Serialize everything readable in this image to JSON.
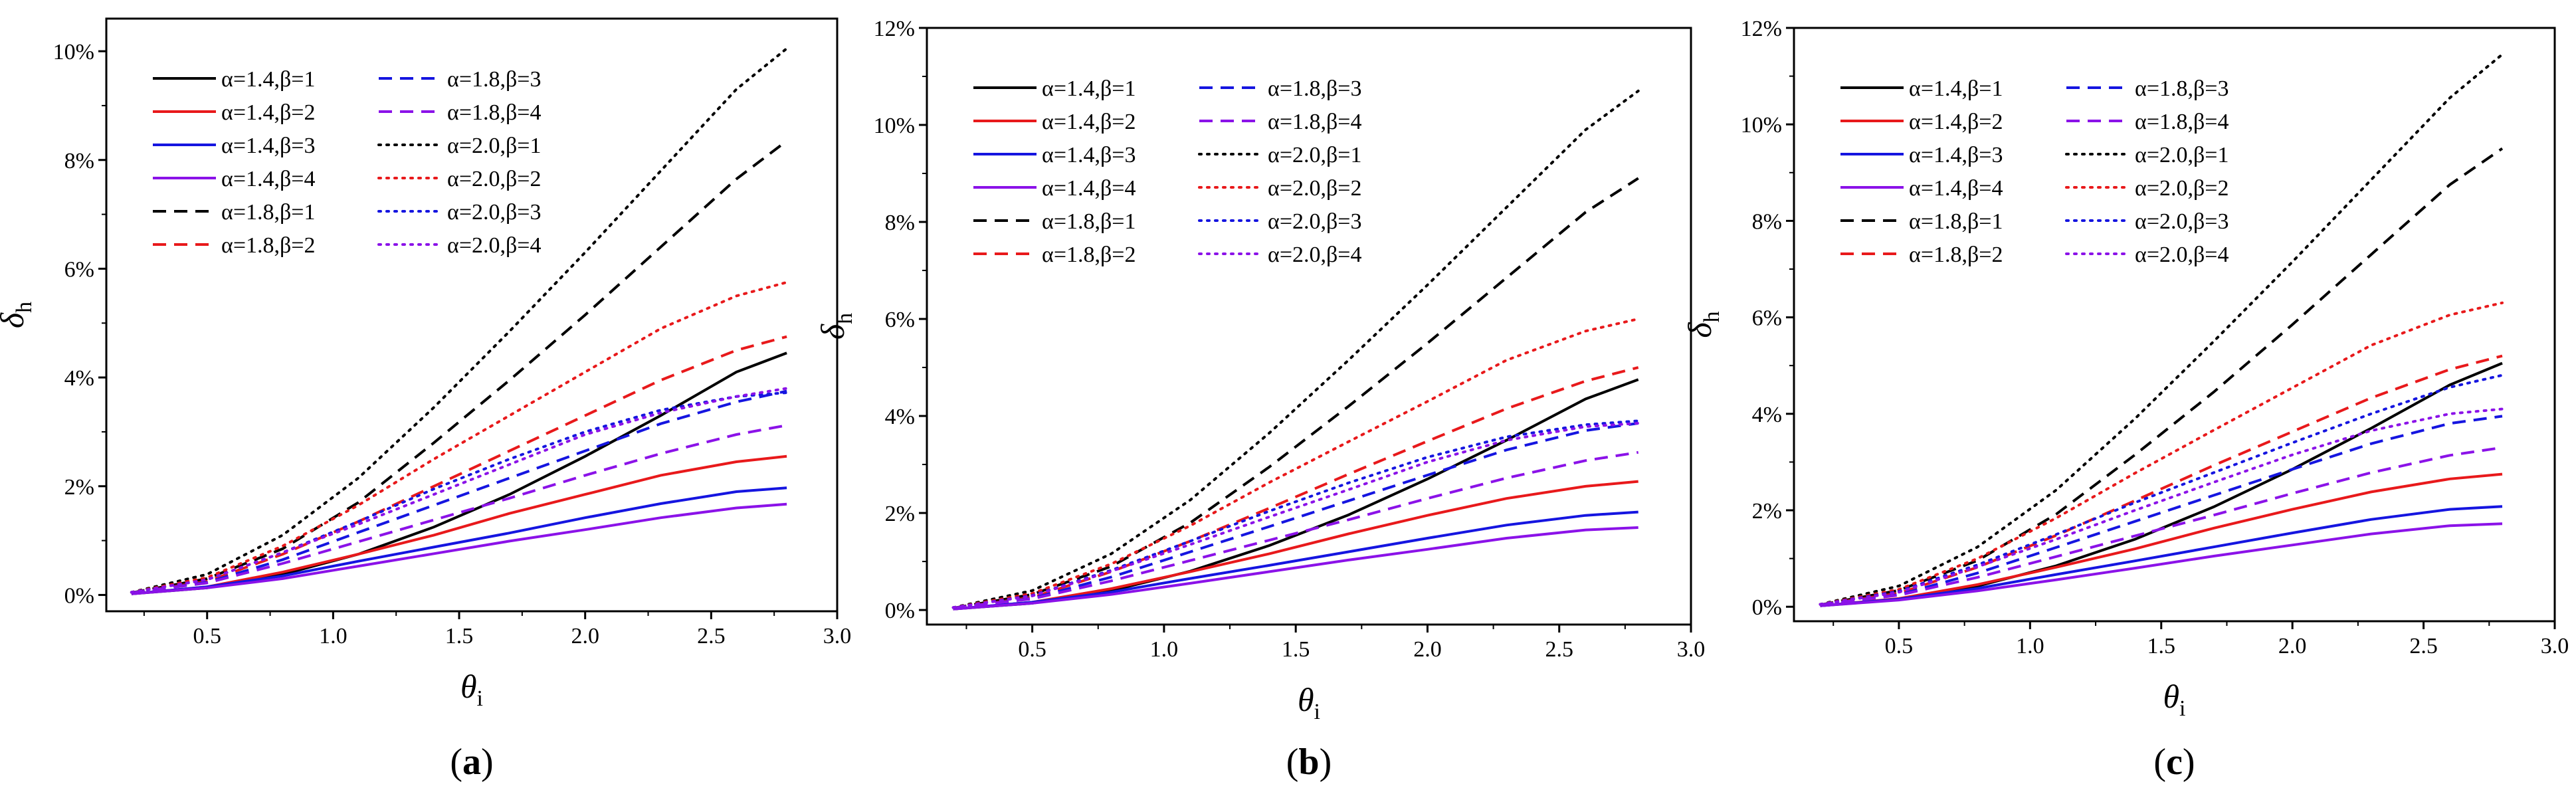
{
  "figure": {
    "panels": [
      "a",
      "b",
      "c"
    ]
  },
  "chart_data": [
    {
      "panel_label": "(a)",
      "panel_letter": "a",
      "type": "line",
      "xlabel": "θ",
      "xlabel_sub": "i",
      "ylabel": "δ",
      "ylabel_sub": "h",
      "xlim": [
        0.1,
        3.0
      ],
      "ylim": [
        -0.3,
        10.6
      ],
      "xticks": [
        0.5,
        1.0,
        1.5,
        2.0,
        2.5,
        3.0
      ],
      "xtick_labels": [
        "0.5",
        "1.0",
        "1.5",
        "2.0",
        "2.5",
        "3.0"
      ],
      "yticks": [
        0,
        2,
        4,
        6,
        8,
        10
      ],
      "ytick_labels": [
        "0%",
        "2%",
        "4%",
        "6%",
        "8%",
        "10%"
      ],
      "legend_position": "top-left",
      "x": [
        0.2,
        0.5,
        0.8,
        1.1,
        1.4,
        1.7,
        2.0,
        2.3,
        2.6,
        2.8
      ],
      "series": [
        {
          "name": "α=1.4,β=1",
          "color": "#000000",
          "dash": "solid",
          "values": [
            0.02,
            0.13,
            0.38,
            0.75,
            1.25,
            1.85,
            2.55,
            3.3,
            4.1,
            4.45
          ]
        },
        {
          "name": "α=1.4,β=2",
          "color": "#e8191b",
          "dash": "solid",
          "values": [
            0.02,
            0.15,
            0.42,
            0.75,
            1.1,
            1.5,
            1.85,
            2.2,
            2.45,
            2.55
          ]
        },
        {
          "name": "α=1.4,β=3",
          "color": "#1515e0",
          "dash": "solid",
          "values": [
            0.02,
            0.15,
            0.35,
            0.62,
            0.88,
            1.14,
            1.42,
            1.68,
            1.9,
            1.97
          ]
        },
        {
          "name": "α=1.4,β=4",
          "color": "#8b12e8",
          "dash": "solid",
          "values": [
            0.02,
            0.13,
            0.3,
            0.53,
            0.76,
            0.99,
            1.2,
            1.42,
            1.6,
            1.67
          ]
        },
        {
          "name": "α=1.8,β=1",
          "color": "#000000",
          "dash": "dashed",
          "values": [
            0.04,
            0.3,
            0.85,
            1.7,
            2.8,
            3.95,
            5.15,
            6.4,
            7.65,
            8.35
          ]
        },
        {
          "name": "α=1.8,β=2",
          "color": "#e8191b",
          "dash": "dashed",
          "values": [
            0.04,
            0.25,
            0.75,
            1.35,
            2.0,
            2.65,
            3.3,
            3.95,
            4.5,
            4.75
          ]
        },
        {
          "name": "α=1.8,β=3",
          "color": "#1515e0",
          "dash": "dashed",
          "values": [
            0.04,
            0.23,
            0.65,
            1.15,
            1.65,
            2.15,
            2.65,
            3.15,
            3.55,
            3.75
          ]
        },
        {
          "name": "α=1.8,β=4",
          "color": "#8b12e8",
          "dash": "dashed",
          "values": [
            0.04,
            0.22,
            0.58,
            0.98,
            1.38,
            1.78,
            2.2,
            2.6,
            2.95,
            3.12
          ]
        },
        {
          "name": "α=2.0,β=1",
          "color": "#000000",
          "dash": "dotted",
          "values": [
            0.05,
            0.38,
            1.1,
            2.15,
            3.45,
            4.85,
            6.3,
            7.8,
            9.3,
            10.05
          ]
        },
        {
          "name": "α=2.0,β=2",
          "color": "#e8191b",
          "dash": "dotted",
          "values": [
            0.05,
            0.32,
            0.9,
            1.65,
            2.5,
            3.3,
            4.1,
            4.9,
            5.5,
            5.75
          ]
        },
        {
          "name": "α=2.0,β=3",
          "color": "#1515e0",
          "dash": "dotted",
          "values": [
            0.05,
            0.28,
            0.78,
            1.35,
            1.95,
            2.5,
            3.0,
            3.4,
            3.65,
            3.72
          ]
        },
        {
          "name": "α=2.0,β=4",
          "color": "#8b12e8",
          "dash": "dotted",
          "values": [
            0.05,
            0.28,
            0.78,
            1.3,
            1.85,
            2.4,
            2.95,
            3.35,
            3.65,
            3.8
          ]
        }
      ]
    },
    {
      "panel_label": "(b)",
      "panel_letter": "b",
      "type": "line",
      "xlabel": "θ",
      "xlabel_sub": "i",
      "ylabel": "δ",
      "ylabel_sub": "h",
      "xlim": [
        0.1,
        3.0
      ],
      "ylim": [
        -0.3,
        12.0
      ],
      "xticks": [
        0.5,
        1.0,
        1.5,
        2.0,
        2.5,
        3.0
      ],
      "xtick_labels": [
        "0.5",
        "1.0",
        "1.5",
        "2.0",
        "2.5",
        "3.0"
      ],
      "yticks": [
        0,
        2,
        4,
        6,
        8,
        10,
        12
      ],
      "ytick_labels": [
        "0%",
        "2%",
        "4%",
        "6%",
        "8%",
        "10%",
        "12%"
      ],
      "legend_position": "top-left",
      "x": [
        0.2,
        0.5,
        0.8,
        1.1,
        1.4,
        1.7,
        2.0,
        2.3,
        2.6,
        2.8
      ],
      "series": [
        {
          "name": "α=1.4,β=1",
          "color": "#000000",
          "dash": "solid",
          "values": [
            0.02,
            0.14,
            0.4,
            0.8,
            1.33,
            1.96,
            2.7,
            3.5,
            4.35,
            4.75
          ]
        },
        {
          "name": "α=1.4,β=2",
          "color": "#e8191b",
          "dash": "solid",
          "values": [
            0.02,
            0.16,
            0.44,
            0.79,
            1.16,
            1.57,
            1.95,
            2.3,
            2.55,
            2.65
          ]
        },
        {
          "name": "α=1.4,β=3",
          "color": "#1515e0",
          "dash": "solid",
          "values": [
            0.02,
            0.16,
            0.37,
            0.65,
            0.92,
            1.2,
            1.48,
            1.75,
            1.95,
            2.02
          ]
        },
        {
          "name": "α=1.4,β=4",
          "color": "#8b12e8",
          "dash": "solid",
          "values": [
            0.02,
            0.14,
            0.32,
            0.55,
            0.79,
            1.03,
            1.25,
            1.48,
            1.65,
            1.7
          ]
        },
        {
          "name": "α=1.8,β=1",
          "color": "#000000",
          "dash": "dashed",
          "values": [
            0.04,
            0.32,
            0.9,
            1.8,
            2.95,
            4.2,
            5.5,
            6.85,
            8.2,
            8.9
          ]
        },
        {
          "name": "α=1.8,β=2",
          "color": "#e8191b",
          "dash": "dashed",
          "values": [
            0.04,
            0.26,
            0.79,
            1.42,
            2.1,
            2.8,
            3.48,
            4.15,
            4.72,
            5.0
          ]
        },
        {
          "name": "α=1.8,β=3",
          "color": "#1515e0",
          "dash": "dashed",
          "values": [
            0.04,
            0.24,
            0.68,
            1.2,
            1.72,
            2.25,
            2.78,
            3.3,
            3.7,
            3.85
          ]
        },
        {
          "name": "α=1.8,β=4",
          "color": "#8b12e8",
          "dash": "dashed",
          "values": [
            0.04,
            0.23,
            0.6,
            1.02,
            1.44,
            1.86,
            2.3,
            2.72,
            3.08,
            3.25
          ]
        },
        {
          "name": "α=2.0,β=1",
          "color": "#000000",
          "dash": "dotted",
          "values": [
            0.05,
            0.4,
            1.16,
            2.27,
            3.65,
            5.15,
            6.7,
            8.3,
            9.9,
            10.7
          ]
        },
        {
          "name": "α=2.0,β=2",
          "color": "#e8191b",
          "dash": "dotted",
          "values": [
            0.05,
            0.34,
            0.95,
            1.74,
            2.63,
            3.47,
            4.3,
            5.15,
            5.75,
            6.0
          ]
        },
        {
          "name": "α=2.0,β=3",
          "color": "#1515e0",
          "dash": "dotted",
          "values": [
            0.05,
            0.3,
            0.82,
            1.42,
            2.04,
            2.62,
            3.15,
            3.57,
            3.82,
            3.9
          ]
        },
        {
          "name": "α=2.0,β=4",
          "color": "#8b12e8",
          "dash": "dotted",
          "values": [
            0.05,
            0.29,
            0.8,
            1.35,
            1.92,
            2.48,
            3.05,
            3.5,
            3.78,
            3.85
          ]
        }
      ]
    },
    {
      "panel_label": "(c)",
      "panel_letter": "c",
      "type": "line",
      "xlabel": "θ",
      "xlabel_sub": "i",
      "ylabel": "δ",
      "ylabel_sub": "h",
      "xlim": [
        0.1,
        3.0
      ],
      "ylim": [
        -0.3,
        12.0
      ],
      "xticks": [
        0.5,
        1.0,
        1.5,
        2.0,
        2.5,
        3.0
      ],
      "xtick_labels": [
        "0.5",
        "1.0",
        "1.5",
        "2.0",
        "2.5",
        "3.0"
      ],
      "yticks": [
        0,
        2,
        4,
        6,
        8,
        10,
        12
      ],
      "ytick_labels": [
        "0%",
        "2%",
        "4%",
        "6%",
        "8%",
        "10%",
        "12%"
      ],
      "legend_position": "top-left",
      "x": [
        0.2,
        0.5,
        0.8,
        1.1,
        1.4,
        1.7,
        2.0,
        2.3,
        2.6,
        2.8
      ],
      "series": [
        {
          "name": "α=1.4,β=1",
          "color": "#000000",
          "dash": "solid",
          "values": [
            0.02,
            0.15,
            0.43,
            0.85,
            1.4,
            2.07,
            2.85,
            3.7,
            4.6,
            5.05
          ]
        },
        {
          "name": "α=1.4,β=2",
          "color": "#e8191b",
          "dash": "solid",
          "values": [
            0.02,
            0.17,
            0.46,
            0.82,
            1.2,
            1.63,
            2.02,
            2.38,
            2.65,
            2.75
          ]
        },
        {
          "name": "α=1.4,β=3",
          "color": "#1515e0",
          "dash": "solid",
          "values": [
            0.02,
            0.16,
            0.38,
            0.67,
            0.95,
            1.24,
            1.53,
            1.81,
            2.02,
            2.08
          ]
        },
        {
          "name": "α=1.4,β=4",
          "color": "#8b12e8",
          "dash": "solid",
          "values": [
            0.02,
            0.14,
            0.33,
            0.56,
            0.8,
            1.05,
            1.28,
            1.51,
            1.68,
            1.72
          ]
        },
        {
          "name": "α=1.8,β=1",
          "color": "#000000",
          "dash": "dashed",
          "values": [
            0.04,
            0.34,
            0.96,
            1.92,
            3.15,
            4.45,
            5.85,
            7.3,
            8.75,
            9.5
          ]
        },
        {
          "name": "α=1.8,β=2",
          "color": "#e8191b",
          "dash": "dashed",
          "values": [
            0.04,
            0.28,
            0.82,
            1.48,
            2.2,
            2.93,
            3.63,
            4.33,
            4.92,
            5.2
          ]
        },
        {
          "name": "α=1.8,β=3",
          "color": "#1515e0",
          "dash": "dashed",
          "values": [
            0.04,
            0.25,
            0.7,
            1.23,
            1.77,
            2.31,
            2.85,
            3.38,
            3.8,
            3.95
          ]
        },
        {
          "name": "α=1.8,β=4",
          "color": "#8b12e8",
          "dash": "dashed",
          "values": [
            0.04,
            0.24,
            0.61,
            1.04,
            1.47,
            1.9,
            2.35,
            2.78,
            3.14,
            3.3
          ]
        },
        {
          "name": "α=2.0,β=1",
          "color": "#000000",
          "dash": "dotted",
          "values": [
            0.05,
            0.43,
            1.24,
            2.42,
            3.9,
            5.5,
            7.15,
            8.85,
            10.55,
            11.45
          ]
        },
        {
          "name": "α=2.0,β=2",
          "color": "#e8191b",
          "dash": "dotted",
          "values": [
            0.05,
            0.36,
            1.0,
            1.84,
            2.77,
            3.66,
            4.54,
            5.42,
            6.05,
            6.3
          ]
        },
        {
          "name": "α=2.0,β=3",
          "color": "#1515e0",
          "dash": "dotted",
          "values": [
            0.05,
            0.32,
            0.87,
            1.5,
            2.16,
            2.78,
            3.4,
            4.0,
            4.55,
            4.8
          ]
        },
        {
          "name": "α=2.0,β=4",
          "color": "#8b12e8",
          "dash": "dotted",
          "values": [
            0.05,
            0.3,
            0.83,
            1.4,
            2.0,
            2.58,
            3.15,
            3.65,
            4.0,
            4.1
          ]
        }
      ]
    }
  ]
}
